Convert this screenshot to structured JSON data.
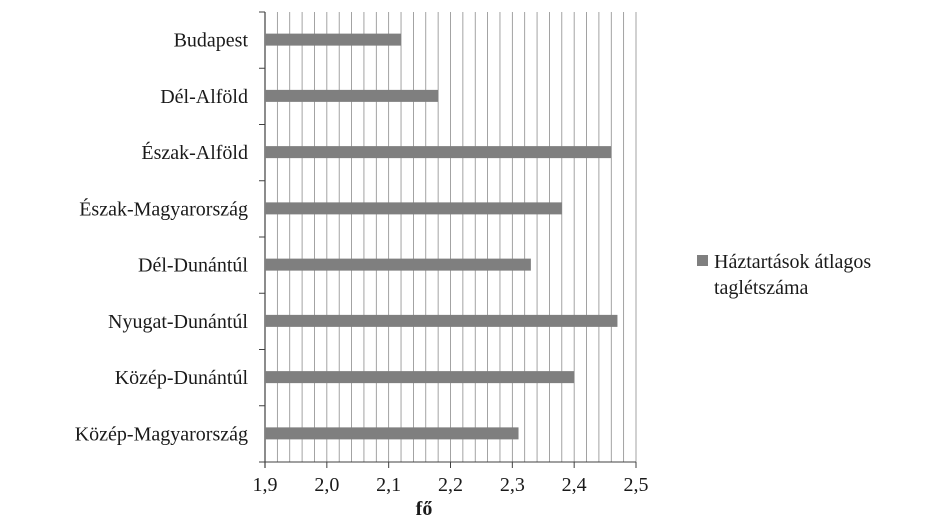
{
  "chart_data": {
    "type": "bar",
    "orientation": "horizontal",
    "categories": [
      "Budapest",
      "Dél-Alföld",
      "Észak-Alföld",
      "Észak-Magyarország",
      "Dél-Dunántúl",
      "Nyugat-Dunántúl",
      "Közép-Dunántúl",
      "Közép-Magyarország"
    ],
    "series": [
      {
        "name": "Háztartások átlagos taglétszáma",
        "legend_lines": [
          "Háztartások átlagos",
          "taglétszáma"
        ],
        "values": [
          2.12,
          2.18,
          2.46,
          2.38,
          2.33,
          2.47,
          2.4,
          2.31
        ]
      }
    ],
    "xlabel": "fő",
    "xlim": [
      1.9,
      2.5
    ],
    "xticks": [
      "1,9",
      "2,0",
      "2,1",
      "2,2",
      "2,3",
      "2,4",
      "2,5"
    ],
    "minor_grid_step": 0.02,
    "grid": true,
    "legend_position": "right",
    "bar_color": "#7f7f7f"
  }
}
